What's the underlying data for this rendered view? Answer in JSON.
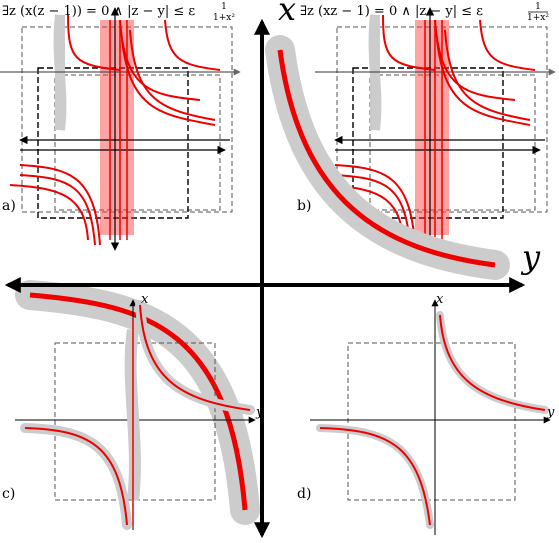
{
  "axes": {
    "x": "x",
    "y": "y"
  },
  "panels": [
    "a)",
    "b)",
    "c)",
    "d)"
  ],
  "formulas": [
    {
      "text": "∃z (x(z − 1)) = 0 ∧ |z − y| ≤ ε",
      "numerator": "1",
      "denominator": "1+x²"
    },
    {
      "text": "∃z (xz − 1) = 0 ∧ |z − y| ≤ ε",
      "numerator": "1",
      "denominator": "1+x²"
    }
  ]
}
